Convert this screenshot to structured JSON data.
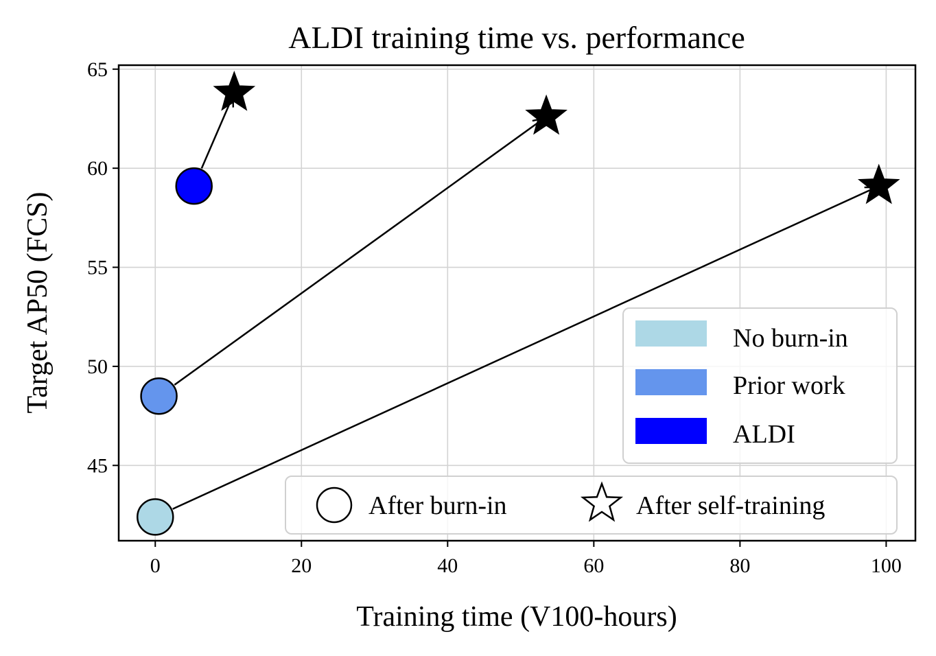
{
  "chart_data": {
    "type": "scatter",
    "title": "ALDI training time vs. performance",
    "xlabel": "Training time (V100-hours)",
    "ylabel": "Target AP50 (FCS)",
    "xlim": [
      -5,
      104
    ],
    "ylim": [
      41.2,
      65.2
    ],
    "xticks": [
      0,
      20,
      40,
      60,
      80,
      100
    ],
    "yticks": [
      45,
      50,
      55,
      60,
      65
    ],
    "grid": true,
    "series": [
      {
        "name": "No burn-in",
        "color": "#add8e6",
        "burnin": {
          "x": 0.0,
          "y": 42.4
        },
        "selftrain": {
          "x": 99.0,
          "y": 59.1
        }
      },
      {
        "name": "Prior work",
        "color": "#6495ed",
        "burnin": {
          "x": 0.5,
          "y": 48.5
        },
        "selftrain": {
          "x": 53.5,
          "y": 62.6
        }
      },
      {
        "name": "ALDI",
        "color": "#0000ff",
        "burnin": {
          "x": 5.3,
          "y": 59.1
        },
        "selftrain": {
          "x": 10.8,
          "y": 63.8
        }
      }
    ],
    "legend_colors": {
      "placement": "center-right",
      "entries": [
        "No burn-in",
        "Prior work",
        "ALDI"
      ]
    },
    "legend_markers": {
      "placement": "lower-right",
      "entries": [
        {
          "symbol": "circle",
          "label": "After burn-in"
        },
        {
          "symbol": "star",
          "label": "After self-training"
        }
      ]
    }
  }
}
